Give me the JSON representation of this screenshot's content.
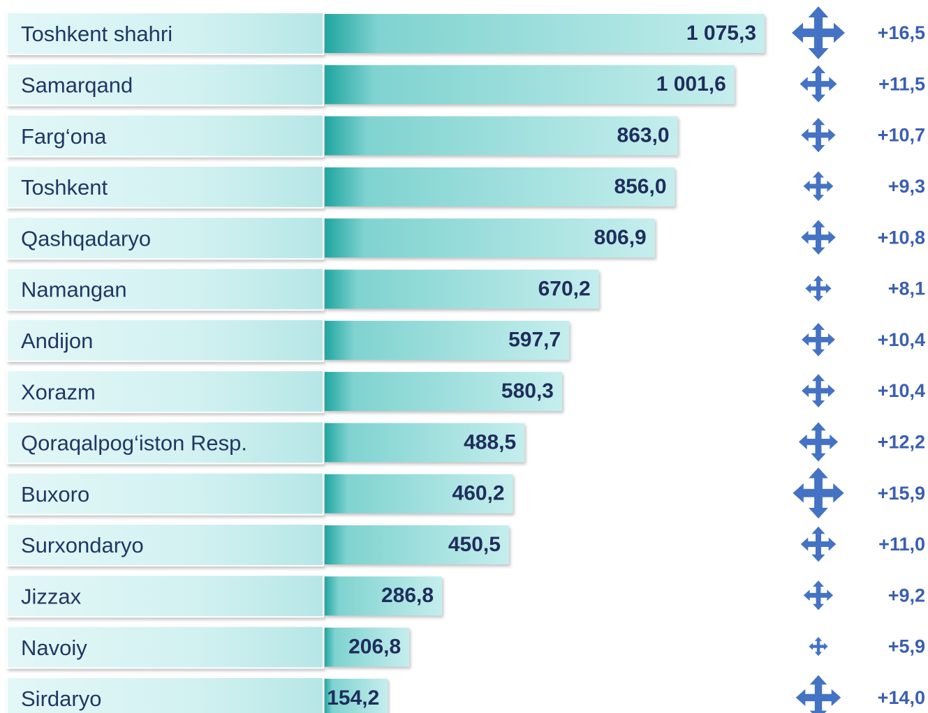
{
  "chart_data": {
    "type": "bar",
    "orientation": "horizontal",
    "categories": [
      "Toshkent shahri",
      "Samarqand",
      "Farg‘ona",
      "Toshkent",
      "Qashqadaryo",
      "Namangan",
      "Andijon",
      "Xorazm",
      "Qoraqalpog‘iston Resp.",
      "Buxoro",
      "Surxondaryo",
      "Jizzax",
      "Navoiy",
      "Sirdaryo"
    ],
    "values": [
      1075.3,
      1001.6,
      863.0,
      856.0,
      806.9,
      670.2,
      597.7,
      580.3,
      488.5,
      460.2,
      450.5,
      286.8,
      206.8,
      154.2
    ],
    "value_labels": [
      "1 075,3",
      "1 001,6",
      "863,0",
      "856,0",
      "806,9",
      "670,2",
      "597,7",
      "580,3",
      "488,5",
      "460,2",
      "450,5",
      "286,8",
      "206,8",
      "154,2"
    ],
    "change_values": [
      16.5,
      11.5,
      10.7,
      9.3,
      10.8,
      8.1,
      10.4,
      10.4,
      12.2,
      15.9,
      11.0,
      9.2,
      5.9,
      14.0
    ],
    "change_labels": [
      "+16,5",
      "+11,5",
      "+10,7",
      "+9,3",
      "+10,8",
      "+8,1",
      "+10,4",
      "+10,4",
      "+12,2",
      "+15,9",
      "+11,0",
      "+9,2",
      "+5,9",
      "+14,0"
    ],
    "color": "#1fa5a0",
    "icon_color": "#4472c4"
  }
}
